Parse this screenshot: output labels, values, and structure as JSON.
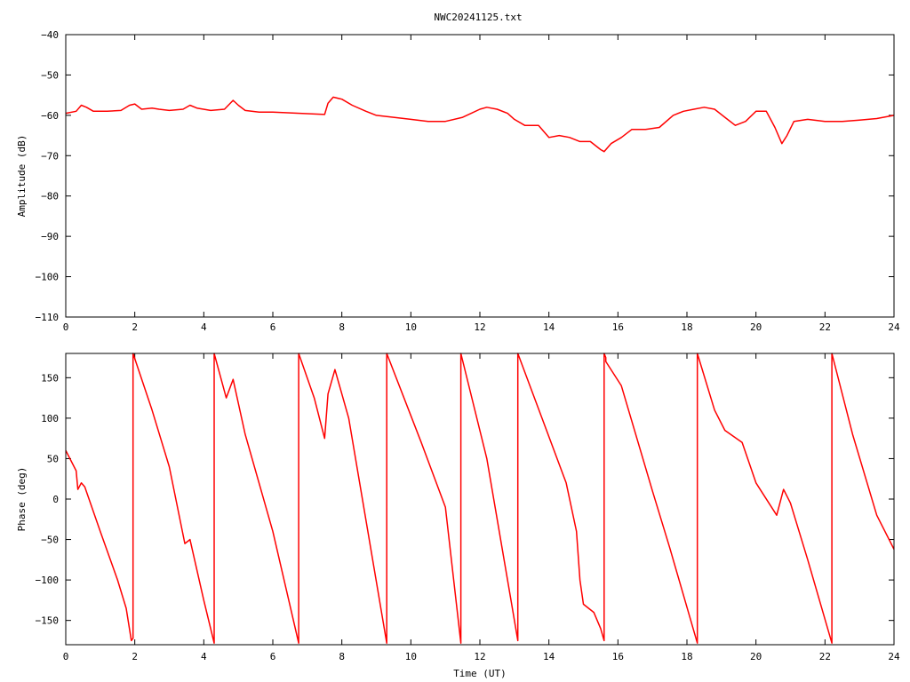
{
  "title": "NWC20241125.txt",
  "chart_data": [
    {
      "type": "line",
      "title": "NWC20241125.txt",
      "xlabel": "",
      "ylabel": "Amplitude (dB)",
      "xlim": [
        0,
        24
      ],
      "ylim": [
        -110,
        -40
      ],
      "xticks": [
        0,
        2,
        4,
        6,
        8,
        10,
        12,
        14,
        16,
        18,
        20,
        22,
        24
      ],
      "yticks": [
        -40,
        -50,
        -60,
        -70,
        -80,
        -90,
        -100,
        -110
      ],
      "xtick_labels": [
        "0",
        "2",
        "4",
        "6",
        "8",
        "10",
        "12",
        "14",
        "16",
        "18",
        "20",
        "22",
        "24"
      ],
      "ytick_labels": [
        "−40",
        "−50",
        "−60",
        "−70",
        "−80",
        "−90",
        "−100",
        "−110"
      ],
      "grid": false,
      "color": "#ff0000",
      "series": [
        {
          "x": [
            0,
            0.3,
            0.45,
            0.6,
            0.8,
            1.2,
            1.6,
            1.85,
            2.0,
            2.2,
            2.5,
            2.7,
            3.0,
            3.4,
            3.6,
            3.8,
            4.2,
            4.6,
            4.85,
            5.0,
            5.2,
            5.6,
            6.0,
            6.5,
            7.0,
            7.5,
            7.6,
            7.75,
            8.0,
            8.3,
            8.7,
            9.0,
            9.5,
            10.0,
            10.5,
            11.0,
            11.5,
            12.0,
            12.2,
            12.5,
            12.8,
            13.0,
            13.3,
            13.7,
            14.0,
            14.3,
            14.6,
            14.9,
            15.2,
            15.5,
            15.6,
            15.8,
            16.1,
            16.4,
            16.8,
            17.2,
            17.6,
            17.9,
            18.2,
            18.5,
            18.8,
            19.1,
            19.4,
            19.7,
            20.0,
            20.3,
            20.55,
            20.75,
            20.9,
            21.1,
            21.5,
            22.0,
            22.5,
            23.0,
            23.5,
            24.0
          ],
          "y": [
            -59.5,
            -59.0,
            -57.5,
            -58.0,
            -59.0,
            -59.0,
            -58.8,
            -57.5,
            -57.2,
            -58.5,
            -58.2,
            -58.5,
            -58.8,
            -58.5,
            -57.5,
            -58.2,
            -58.8,
            -58.5,
            -56.3,
            -57.5,
            -58.8,
            -59.2,
            -59.2,
            -59.4,
            -59.6,
            -59.8,
            -57.0,
            -55.5,
            -56.0,
            -57.5,
            -59.0,
            -60.0,
            -60.5,
            -61.0,
            -61.5,
            -61.5,
            -60.5,
            -58.5,
            -58.0,
            -58.5,
            -59.5,
            -61.0,
            -62.5,
            -62.5,
            -65.5,
            -65.0,
            -65.5,
            -66.5,
            -66.5,
            -68.5,
            -69.0,
            -67.0,
            -65.5,
            -63.5,
            -63.5,
            -63.0,
            -60.0,
            -59.0,
            -58.5,
            -58.0,
            -58.5,
            -60.5,
            -62.5,
            -61.5,
            -59.0,
            -59.0,
            -63.0,
            -67.0,
            -65.0,
            -61.5,
            -61.0,
            -61.5,
            -61.5,
            -61.2,
            -60.8,
            -60.0
          ]
        }
      ]
    },
    {
      "type": "line",
      "title": "",
      "xlabel": "Time (UT)",
      "ylabel": "Phase (deg)",
      "xlim": [
        0,
        24
      ],
      "ylim": [
        -180,
        180
      ],
      "xticks": [
        0,
        2,
        4,
        6,
        8,
        10,
        12,
        14,
        16,
        18,
        20,
        22,
        24
      ],
      "yticks": [
        150,
        100,
        50,
        0,
        -50,
        -100,
        -150
      ],
      "xtick_labels": [
        "0",
        "2",
        "4",
        "6",
        "8",
        "10",
        "12",
        "14",
        "16",
        "18",
        "20",
        "22",
        "24"
      ],
      "ytick_labels": [
        "150",
        "100",
        "50",
        "0",
        "−50",
        "−100",
        "−150"
      ],
      "grid": false,
      "color": "#ff0000",
      "series": [
        {
          "x": [
            0,
            0.3,
            0.35,
            0.45,
            0.55,
            1.0,
            1.5,
            1.75,
            1.9,
            1.95,
            1.95,
            2.5,
            3.0,
            3.45,
            3.6,
            4.0,
            4.3,
            4.3,
            4.65,
            4.85,
            5.2,
            6.0,
            6.75,
            6.75,
            7.2,
            7.5,
            7.6,
            7.8,
            8.2,
            9.3,
            9.3,
            10.3,
            11.0,
            11.45,
            11.45,
            12.2,
            12.9,
            13.1,
            13.1,
            13.8,
            14.5,
            14.8,
            14.9,
            15.0,
            15.3,
            15.5,
            15.6,
            15.6,
            15.65,
            15.65,
            16.1,
            17.0,
            17.5,
            18.3,
            18.3,
            18.8,
            19.1,
            19.6,
            20.0,
            20.6,
            20.8,
            21.0,
            21.5,
            22.2,
            22.2,
            22.8,
            23.5,
            24.0
          ],
          "y": [
            60,
            35,
            12,
            20,
            15,
            -40,
            -100,
            -135,
            -175,
            -172,
            180,
            110,
            40,
            -55,
            -50,
            -125,
            -178,
            180,
            125,
            148,
            80,
            -40,
            -178,
            180,
            125,
            75,
            130,
            160,
            100,
            -178,
            180,
            70,
            -10,
            -178,
            180,
            50,
            -125,
            -175,
            180,
            100,
            20,
            -40,
            -100,
            -130,
            -140,
            -160,
            -175,
            180,
            175,
            170,
            140,
            10,
            -60,
            -178,
            180,
            110,
            85,
            70,
            20,
            -20,
            12,
            -5,
            -75,
            -178,
            180,
            80,
            -20,
            -62
          ]
        }
      ]
    }
  ]
}
